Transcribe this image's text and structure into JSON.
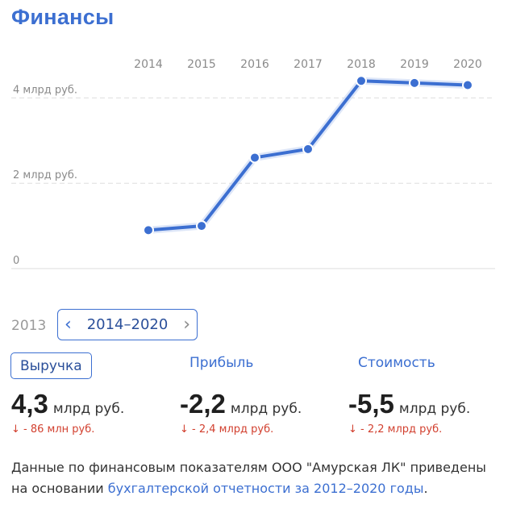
{
  "title": "Финансы",
  "chart_data": {
    "type": "line",
    "x": [
      "2014",
      "2015",
      "2016",
      "2017",
      "2018",
      "2019",
      "2020"
    ],
    "series": [
      {
        "values": [
          0.9,
          1.0,
          2.6,
          2.8,
          4.4,
          4.35,
          4.3
        ]
      }
    ],
    "y_ticks": [
      {
        "value": 0,
        "label": "0"
      },
      {
        "value": 2,
        "label": "2 млрд руб."
      },
      {
        "value": 4,
        "label": "4 млрд руб."
      }
    ],
    "ylim": [
      0,
      4.65
    ],
    "grid": "dashed horizontal",
    "line_color": "#3c6fd1"
  },
  "year_prev": "2013",
  "range_label": "2014–2020",
  "metrics": [
    {
      "label": "Выручка",
      "value": "4,3",
      "unit": "млрд руб.",
      "change": "↓ - 86 млн руб."
    },
    {
      "label": "Прибыль",
      "value": "-2,2",
      "unit": "млрд руб.",
      "change": "↓ - 2,4 млрд руб."
    },
    {
      "label": "Стоимость",
      "value": "-5,5",
      "unit": "млрд руб.",
      "change": "↓ - 2,2 млрд руб."
    }
  ],
  "note": {
    "text": "Данные по финансовым показателям ООО \"Амурская ЛК\" приведены на основании ",
    "link": "бухгалтерской отчетности за 2012–2020 годы",
    "suffix": "."
  }
}
